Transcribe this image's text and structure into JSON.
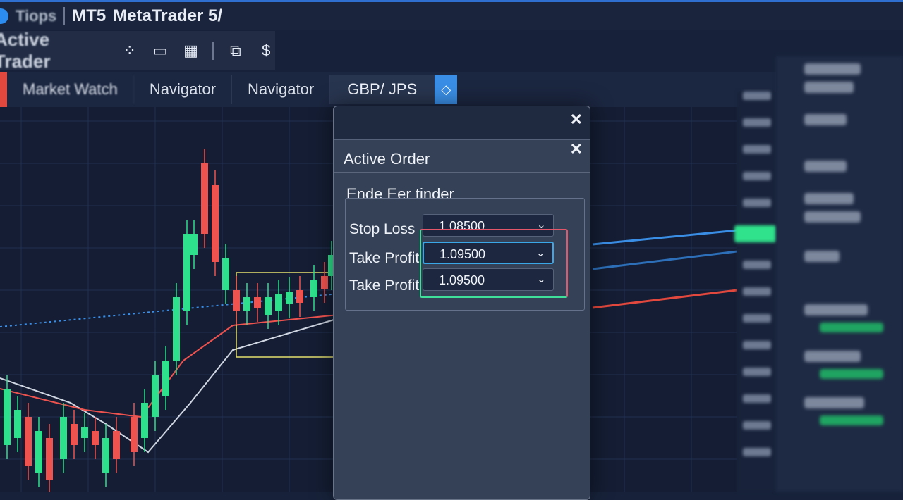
{
  "titlebar": {
    "brand": "Tiops",
    "product": "MT5",
    "title": "MetaTrader 5/"
  },
  "toolbar": {
    "label": "Active Trader",
    "icons": [
      "network-icon",
      "folder-icon",
      "grid-icon",
      "windows-icon",
      "dollar-alarm-icon"
    ]
  },
  "tabs": [
    {
      "label": "Market Watch"
    },
    {
      "label": "Navigator"
    },
    {
      "label": "Navigator"
    },
    {
      "label": "GBP/ JPS",
      "active": true
    }
  ],
  "dialog": {
    "title": "Active Order",
    "section": "Ende Eer tinder",
    "fields": [
      {
        "label": "Stop Loss",
        "value": "1.08500"
      },
      {
        "label": "Take Profit",
        "value": "1.09500"
      },
      {
        "label": "Take Profit",
        "value": "1.09500"
      }
    ]
  },
  "colors": {
    "bull": "#2ee08c",
    "bear": "#ef5350",
    "accent": "#3a8ee6",
    "bg": "#141d33"
  }
}
